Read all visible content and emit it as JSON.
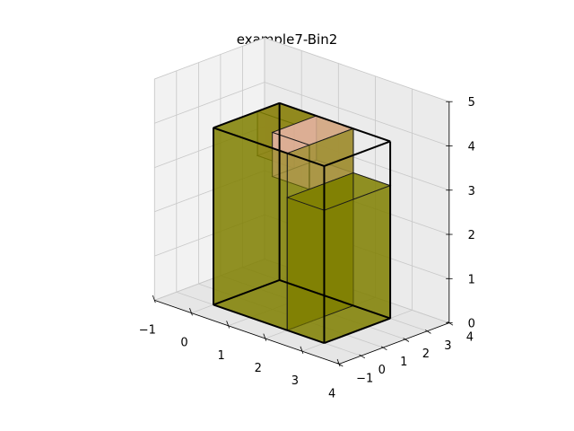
{
  "chart_data": {
    "type": "3d-bin-packing",
    "title": "example7-Bin2",
    "xlabel": "",
    "ylabel": "",
    "zlabel": "",
    "xlim": [
      -1,
      4
    ],
    "ylim": [
      -1,
      4
    ],
    "zlim": [
      0,
      5
    ],
    "xticks": [
      "−1",
      "0",
      "1",
      "2",
      "3",
      "4"
    ],
    "yticks": [
      "−1",
      "0",
      "1",
      "2",
      "3",
      "4"
    ],
    "zticks": [
      "0",
      "1",
      "2",
      "3",
      "4",
      "5"
    ],
    "grid": true,
    "bin": {
      "x": [
        0,
        3
      ],
      "y": [
        0,
        3
      ],
      "z": [
        0,
        4
      ]
    },
    "boxes": [
      {
        "x": [
          0,
          2
        ],
        "y": [
          0,
          3
        ],
        "z": [
          0,
          4
        ],
        "color": "#808000"
      },
      {
        "x": [
          2,
          3
        ],
        "y": [
          0,
          3
        ],
        "z": [
          0,
          3
        ],
        "color": "#808000"
      },
      {
        "x": [
          1,
          2
        ],
        "y": [
          1,
          3
        ],
        "z": [
          3,
          4
        ],
        "color": "#ffc0cb"
      },
      {
        "x": [
          0,
          1
        ],
        "y": [
          2,
          3
        ],
        "z": [
          3,
          4
        ],
        "color": "#ffc0cb"
      }
    ]
  }
}
